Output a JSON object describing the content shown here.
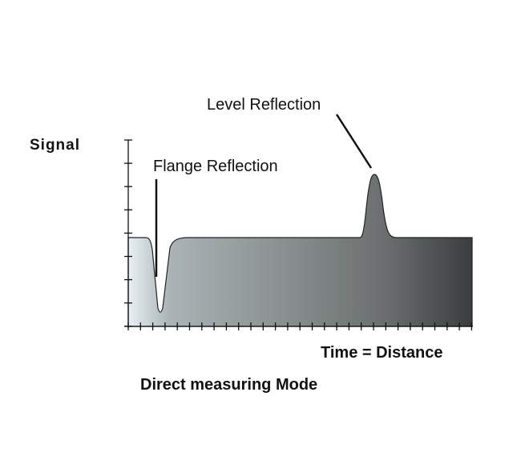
{
  "y_axis_label": "Signal",
  "x_axis_label": "Time = Distance",
  "caption": "Direct measuring Mode",
  "annotations": {
    "flange": "Flange Reflection",
    "level": "Level Reflection"
  },
  "colors": {
    "fill_left": "#e8f0f4",
    "fill_right": "#3a3d3f",
    "axis": "#111111"
  }
}
